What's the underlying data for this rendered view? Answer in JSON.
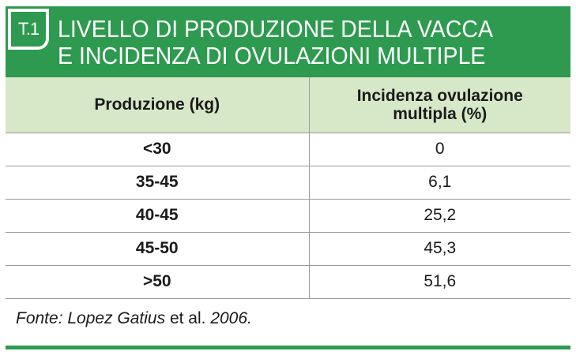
{
  "header": {
    "badge": "T.1",
    "title_line1": "LIVELLO DI PRODUZIONE DELLA VACCA",
    "title_line2": "E INCIDENZA DI OVULAZIONI MULTIPLE",
    "color": "#2e9a4f"
  },
  "table": {
    "col1_header": "Produzione (kg)",
    "col2_header_line1": "Incidenza ovulazione",
    "col2_header_line2": "multipla (%)",
    "rows": [
      {
        "production": "<30",
        "incidence": "0"
      },
      {
        "production": "35-45",
        "incidence": "6,1"
      },
      {
        "production": "40-45",
        "incidence": "25,2"
      },
      {
        "production": "45-50",
        "incidence": "45,3"
      },
      {
        "production": ">50",
        "incidence": "51,6"
      }
    ]
  },
  "source": {
    "prefix": "Fonte: Lopez Gatius",
    "middle": " et al. ",
    "year": "2006."
  }
}
